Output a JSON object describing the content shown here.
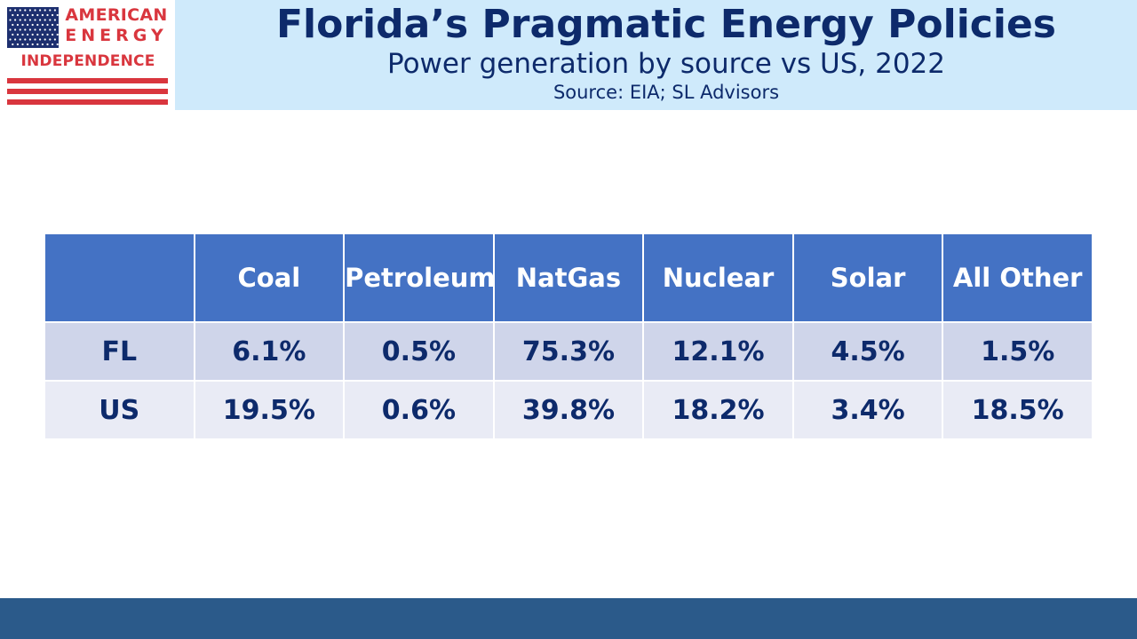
{
  "logo": {
    "line1": "AMERICAN",
    "line2": "ENERGY",
    "line3": "INDEPENDENCE",
    "colors": {
      "red": "#d9363e",
      "blue": "#1d2f6f"
    }
  },
  "header": {
    "title": "Florida’s Pragmatic Energy Policies",
    "subtitle": "Power generation by source vs US, 2022",
    "source": "Source: EIA; SL Advisors"
  },
  "chart_data": {
    "type": "table",
    "title": "Florida’s Pragmatic Energy Policies",
    "subtitle": "Power generation by source vs US, 2022",
    "columns": [
      "",
      "Coal",
      "Petroleum",
      "NatGas",
      "Nuclear",
      "Solar",
      "All Other"
    ],
    "rows": [
      {
        "label": "FL",
        "cells": [
          "6.1%",
          "0.5%",
          "75.3%",
          "12.1%",
          "4.5%",
          "1.5%"
        ]
      },
      {
        "label": "US",
        "cells": [
          "19.5%",
          "0.6%",
          "39.8%",
          "18.2%",
          "3.4%",
          "18.5%"
        ]
      }
    ]
  },
  "colors": {
    "header_bg": "#cfeafb",
    "title_text": "#0d2a6b",
    "table_header": "#4472c4",
    "row_odd": "#cfd5ea",
    "row_even": "#e9ebf5",
    "footer_bar": "#2b5a8a"
  }
}
